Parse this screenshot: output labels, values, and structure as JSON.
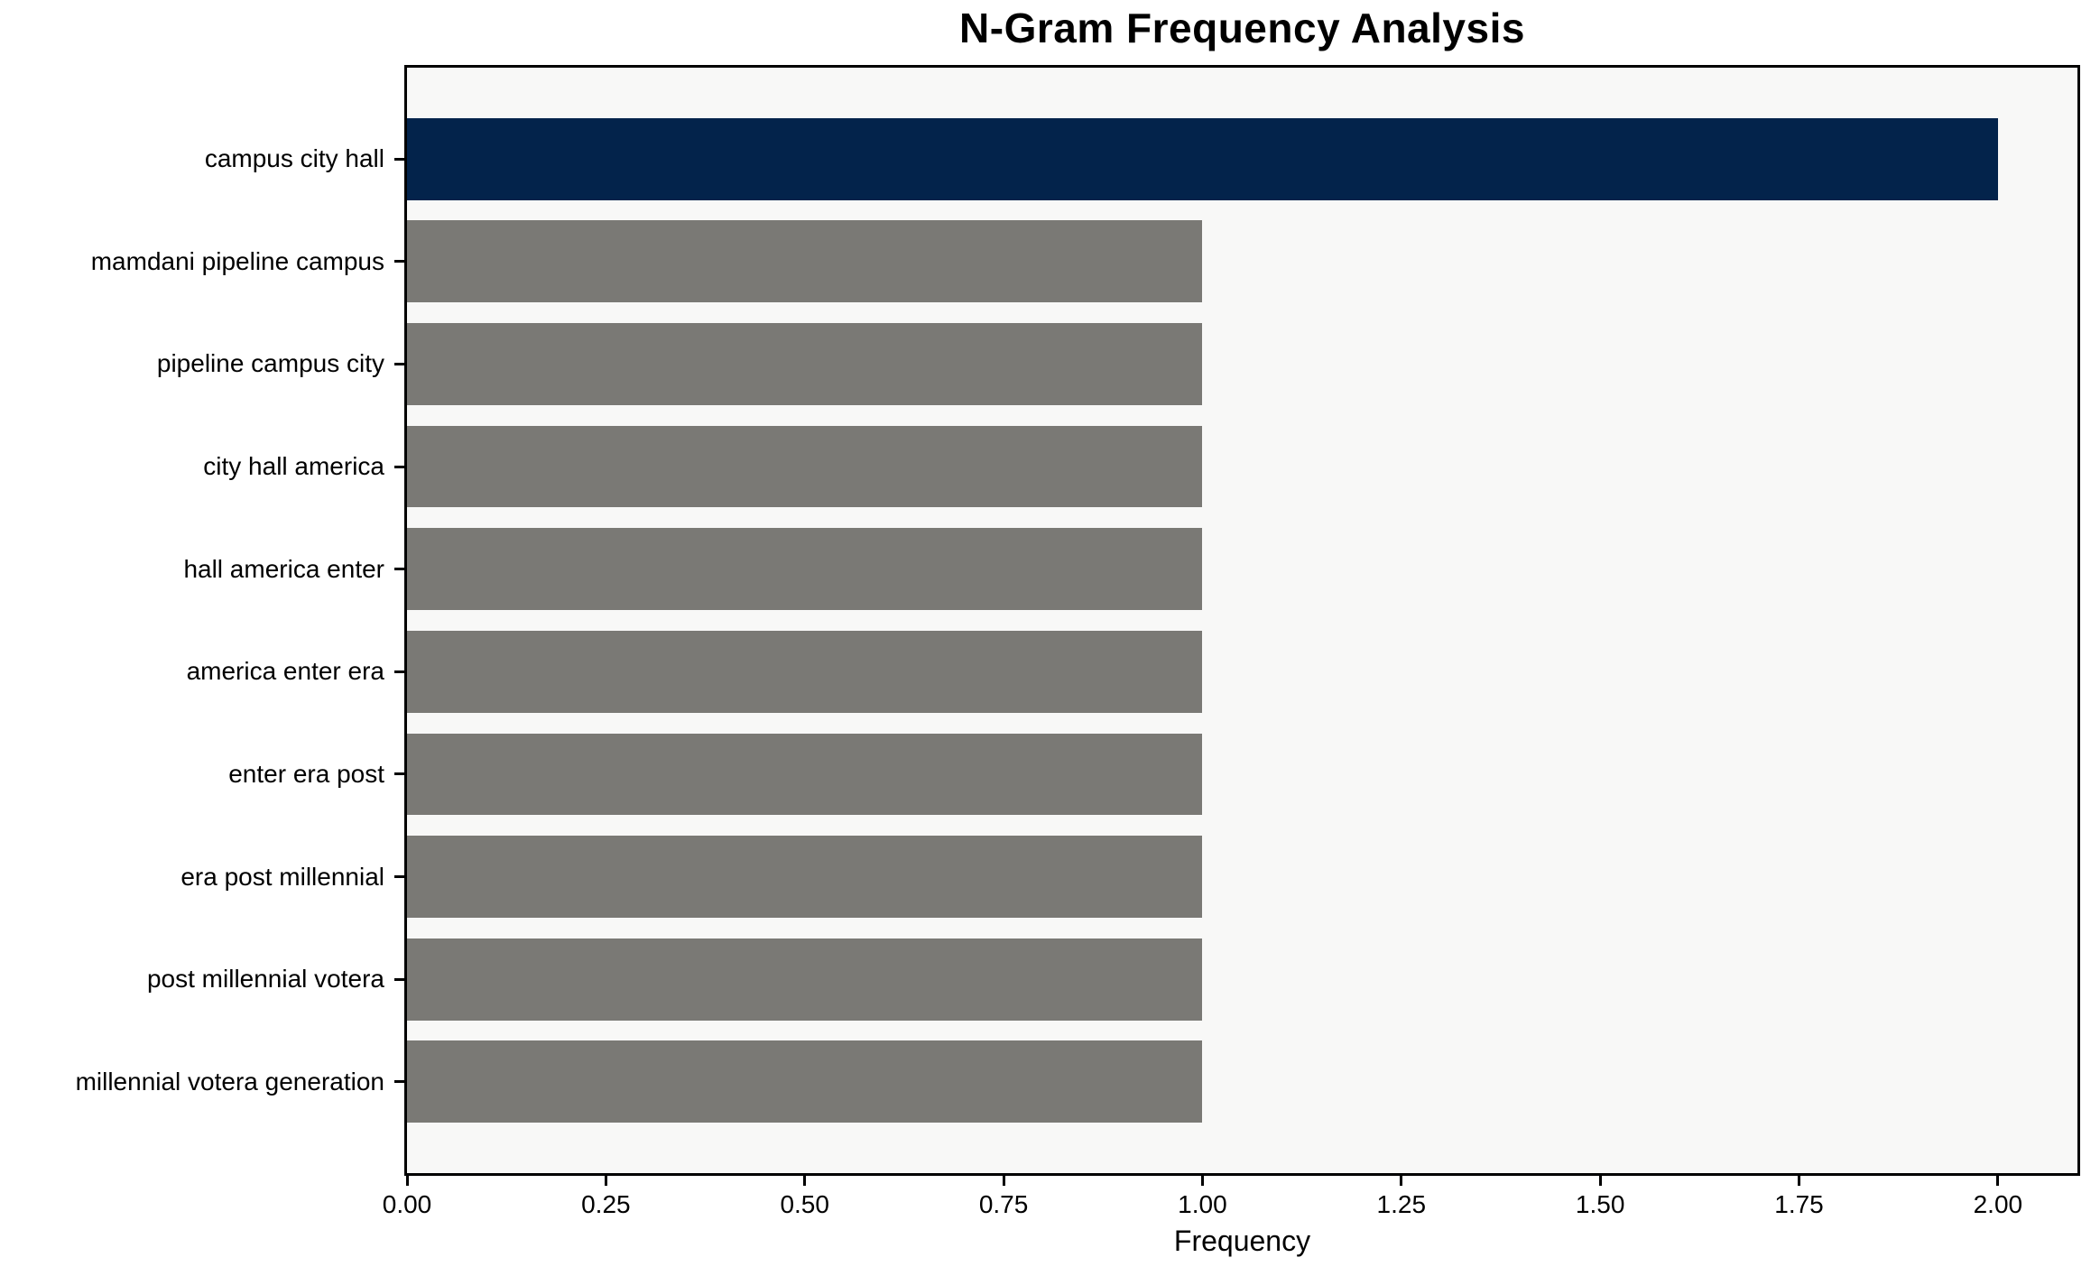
{
  "chart_data": {
    "type": "bar",
    "orientation": "horizontal",
    "title": "N-Gram Frequency Analysis",
    "xlabel": "Frequency",
    "ylabel": "",
    "categories": [
      "campus city hall",
      "mamdani pipeline campus",
      "pipeline campus city",
      "city hall america",
      "hall america enter",
      "america enter era",
      "enter era post",
      "era post millennial",
      "post millennial votera",
      "millennial votera generation"
    ],
    "values": [
      2,
      1,
      1,
      1,
      1,
      1,
      1,
      1,
      1,
      1
    ],
    "bar_colors": [
      "#03234B",
      "#7A7975",
      "#7A7975",
      "#7A7975",
      "#7A7975",
      "#7A7975",
      "#7A7975",
      "#7A7975",
      "#7A7975",
      "#7A7975"
    ],
    "xlim": [
      0,
      2.1
    ],
    "xticks": [
      {
        "label": "0.00",
        "value": 0.0
      },
      {
        "label": "0.25",
        "value": 0.25
      },
      {
        "label": "0.50",
        "value": 0.5
      },
      {
        "label": "0.75",
        "value": 0.75
      },
      {
        "label": "1.00",
        "value": 1.0
      },
      {
        "label": "1.25",
        "value": 1.25
      },
      {
        "label": "1.50",
        "value": 1.5
      },
      {
        "label": "1.75",
        "value": 1.75
      },
      {
        "label": "2.00",
        "value": 2.0
      }
    ],
    "bar_height_fraction": 0.8,
    "grid": false,
    "legend": null,
    "colors": {
      "highlight_bar": "#03234B",
      "default_bar": "#7A7975",
      "plot_background": "#F8F8F7",
      "figure_background": "#FFFFFF",
      "spine": "#000000",
      "text": "#000000"
    }
  }
}
